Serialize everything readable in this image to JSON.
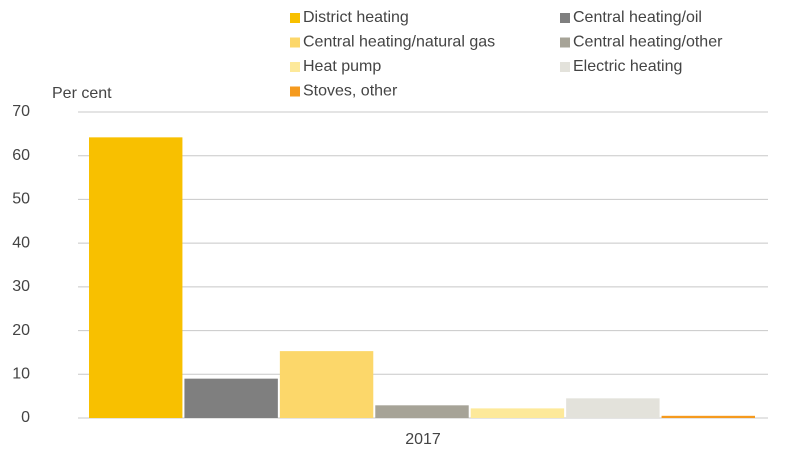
{
  "chart_data": {
    "type": "bar",
    "ylabel": "Per cent",
    "categories": [
      "2017"
    ],
    "series": [
      {
        "name": "District heating",
        "color": "#f8c000",
        "values": [
          64.2
        ]
      },
      {
        "name": "Central heating/oil",
        "color": "#7f7f7f",
        "values": [
          9
        ]
      },
      {
        "name": "Central heating/natural gas",
        "color": "#fcd76a",
        "values": [
          15.3
        ]
      },
      {
        "name": "Central heating/other",
        "color": "#a6a397",
        "values": [
          2.9
        ]
      },
      {
        "name": "Heat pump",
        "color": "#fde99a",
        "values": [
          2.2
        ]
      },
      {
        "name": "Electric heating",
        "color": "#e3e2db",
        "values": [
          4.5
        ]
      },
      {
        "name": "Stoves, other",
        "color": "#f59a1e",
        "values": [
          0.5
        ]
      }
    ],
    "ylim": [
      0,
      70
    ],
    "yticks": [
      0,
      10,
      20,
      30,
      40,
      50,
      60,
      70
    ],
    "grid": true,
    "legend": "top"
  }
}
